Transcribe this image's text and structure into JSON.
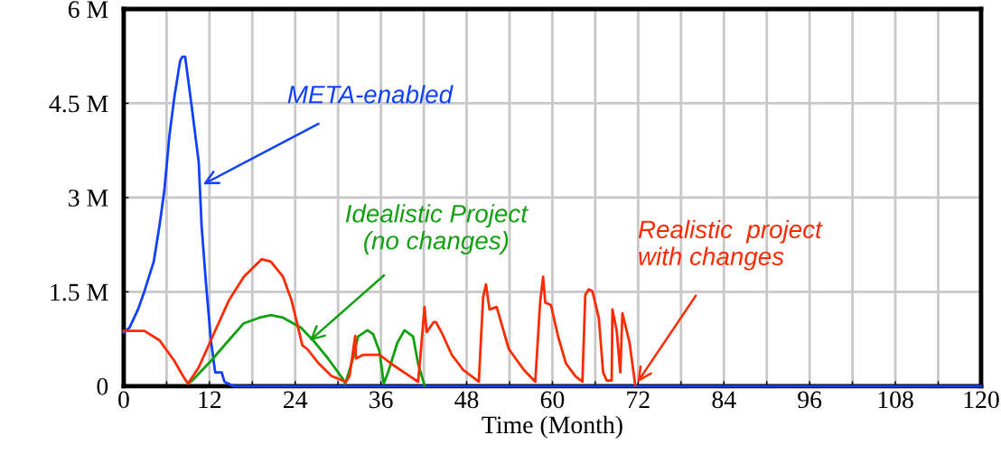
{
  "chart_data": {
    "type": "line",
    "xlabel": "Time (Month)",
    "xlim": [
      0,
      120
    ],
    "ylim": [
      0,
      6000000
    ],
    "xticks": [
      0,
      {
        "value": 6,
        "label": null
      },
      12,
      {
        "value": 18,
        "label": null
      },
      24,
      {
        "value": 30,
        "label": null
      },
      36,
      {
        "value": 42,
        "label": null
      },
      48,
      {
        "value": 54,
        "label": null
      },
      60,
      {
        "value": 66,
        "label": null
      },
      72,
      {
        "value": 78,
        "label": null
      },
      84,
      {
        "value": 90,
        "label": null
      },
      96,
      {
        "value": 102,
        "label": null
      },
      108,
      {
        "value": 114,
        "label": null
      },
      120
    ],
    "yticks": [
      0,
      {
        "value": 1500000,
        "label": "1.5 M"
      },
      {
        "value": 3000000,
        "label": "3 M"
      },
      {
        "value": 4500000,
        "label": "4.5 M"
      },
      {
        "value": 6000000,
        "label": "6 M"
      }
    ],
    "grid": true,
    "marker": "none",
    "line_style": "solid",
    "series": [
      {
        "color": "#1040ff",
        "x": [
          0,
          0.8,
          2.0,
          2.9,
          4.2,
          5.0,
          5.7,
          6.4,
          7.1,
          7.9,
          8.2,
          8.6,
          9.5,
          10.5,
          10.9,
          11.5,
          12.2,
          12.8,
          13.7,
          14.1,
          15.2,
          15.5,
          120
        ],
        "values": [
          850000,
          930000,
          1220000,
          1510000,
          1980000,
          2550000,
          3130000,
          3990000,
          4610000,
          5180000,
          5240000,
          5240000,
          4460000,
          3560000,
          2550000,
          1650000,
          730000,
          220000,
          220000,
          70000,
          10000,
          0,
          0
        ]
      },
      {
        "color": "#10a010",
        "x": [
          9.0,
          9.6,
          12.2,
          14.7,
          16.8,
          19.0,
          20.6,
          22.3,
          24.8,
          26.5,
          28.6,
          30.7,
          31.0,
          32.0,
          32.8,
          34.1,
          34.9,
          35.8,
          36.4,
          37.0,
          38.3,
          39.3,
          40.5,
          41.2,
          42.1
        ],
        "values": [
          40000,
          90000,
          400000,
          730000,
          1000000,
          1090000,
          1130000,
          1090000,
          930000,
          730000,
          440000,
          110000,
          40000,
          400000,
          790000,
          890000,
          830000,
          550000,
          40000,
          220000,
          690000,
          890000,
          790000,
          360000,
          10000
        ]
      },
      {
        "color": "#ff2a00",
        "x": [
          0,
          2.9,
          5.0,
          7.1,
          8.4,
          9.0,
          10.5,
          12.2,
          14.7,
          16.8,
          19.3,
          20.6,
          22.3,
          23.5,
          25.0,
          25.7,
          27.3,
          29.1,
          31.1,
          31.6,
          32.4,
          32.5,
          33.5,
          35.8,
          37.4,
          40.0,
          41.2,
          41.5,
          42.1,
          42.4,
          43.4,
          43.7,
          44.6,
          45.9,
          47.5,
          49.7,
          50.3,
          50.7,
          51.2,
          52.2,
          53.9,
          56.0,
          57.6,
          58.3,
          58.7,
          59.0,
          59.8,
          60.8,
          61.9,
          63.2,
          64.2,
          64.6,
          65.1,
          65.6,
          66.5,
          67.1,
          67.6,
          68.3,
          68.4,
          69.0,
          69.5,
          69.8,
          70.8,
          71.6
        ],
        "values": [
          880000,
          880000,
          730000,
          400000,
          140000,
          40000,
          300000,
          730000,
          1360000,
          1740000,
          2020000,
          1980000,
          1740000,
          1360000,
          650000,
          590000,
          360000,
          160000,
          70000,
          160000,
          800000,
          440000,
          500000,
          500000,
          360000,
          160000,
          70000,
          440000,
          1260000,
          860000,
          1020000,
          1020000,
          830000,
          500000,
          260000,
          70000,
          1410000,
          1620000,
          1220000,
          1260000,
          590000,
          260000,
          70000,
          1360000,
          1740000,
          1330000,
          1290000,
          790000,
          360000,
          160000,
          70000,
          1450000,
          1540000,
          1510000,
          1080000,
          220000,
          90000,
          90000,
          1220000,
          880000,
          220000,
          1160000,
          690000,
          10000
        ]
      }
    ],
    "annotations": [
      {
        "text": "META-enabled",
        "x": 11.1,
        "y": 3210000
      },
      {
        "text": "Idealistic Project\n(no changes)",
        "x": 26.0,
        "y": 720000
      },
      {
        "text": "Realistic  project\nwith changes",
        "x": 71.6,
        "y": 10000
      }
    ]
  }
}
